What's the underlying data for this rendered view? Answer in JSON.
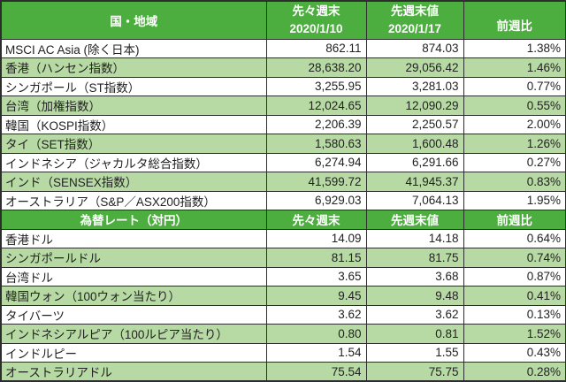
{
  "colors": {
    "header_bg": "#4cae3e",
    "alt_row_bg": "#b7daa4",
    "row_bg": "#ffffff",
    "border": "#2d2d2d",
    "header_text": "#ffffff",
    "cell_text": "#222222"
  },
  "chart_data": [
    {
      "type": "table",
      "header": {
        "col1": "国・地域",
        "col2_line1": "先々週末",
        "col2_line2": "2020/1/10",
        "col3_line1": "先週末値",
        "col3_line2": "2020/1/17",
        "col4": "前週比"
      },
      "rows": [
        [
          "MSCI AC Asia (除く日本)",
          "862.11",
          "874.03",
          "1.38%"
        ],
        [
          "香港（ハンセン指数）",
          "28,638.20",
          "29,056.42",
          "1.46%"
        ],
        [
          "シンガポール（ST指数）",
          "3,255.95",
          "3,281.03",
          "0.77%"
        ],
        [
          "台湾（加権指数）",
          "12,024.65",
          "12,090.29",
          "0.55%"
        ],
        [
          "韓国（KOSPI指数）",
          "2,206.39",
          "2,250.57",
          "2.00%"
        ],
        [
          "タイ（SET指数）",
          "1,580.63",
          "1,600.48",
          "1.26%"
        ],
        [
          "インドネシア（ジャカルタ総合指数）",
          "6,274.94",
          "6,291.66",
          "0.27%"
        ],
        [
          "インド（SENSEX指数）",
          "41,599.72",
          "41,945.37",
          "0.83%"
        ],
        [
          "オーストラリア（S&P／ASX200指数）",
          "6,929.03",
          "7,064.13",
          "1.95%"
        ]
      ]
    },
    {
      "type": "table",
      "header": {
        "col1": "為替レート（対円）",
        "col2": "先々週末",
        "col3": "先週末値",
        "col4": "前週比"
      },
      "rows": [
        [
          "香港ドル",
          "14.09",
          "14.18",
          "0.64%"
        ],
        [
          "シンガポールドル",
          "81.15",
          "81.75",
          "0.74%"
        ],
        [
          "台湾ドル",
          "3.65",
          "3.68",
          "0.87%"
        ],
        [
          "韓国ウォン（100ウォン当たり）",
          "9.45",
          "9.48",
          "0.41%"
        ],
        [
          "タイバーツ",
          "3.62",
          "3.62",
          "0.13%"
        ],
        [
          "インドネシアルピア（100ルピア当たり）",
          "0.80",
          "0.81",
          "1.52%"
        ],
        [
          "インドルピー",
          "1.54",
          "1.55",
          "0.43%"
        ],
        [
          "オーストラリアドル",
          "75.54",
          "75.75",
          "0.28%"
        ]
      ]
    }
  ]
}
